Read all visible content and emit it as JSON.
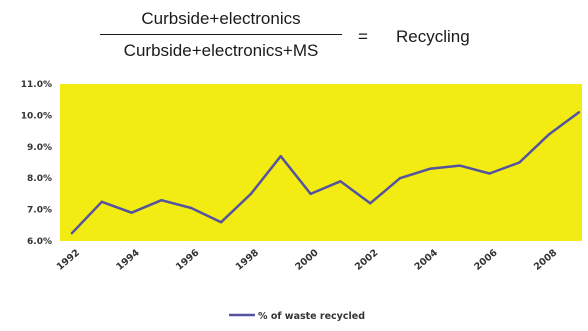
{
  "formula": {
    "numerator": "Curbside+electronics",
    "denominator": "Curbside+electronics+MS",
    "equals": "=",
    "result": "Recycling"
  },
  "chart_data": {
    "type": "line",
    "title": "",
    "xlabel": "",
    "ylabel": "",
    "background_color": "#f2ec12",
    "line_color": "#5552a0",
    "grid": false,
    "legend_position": "bottom-center",
    "ylim": [
      6.0,
      11.0
    ],
    "xlim": [
      1992,
      2009.5
    ],
    "y_ticks": [
      {
        "value": 11.0,
        "label": "11.0%"
      },
      {
        "value": 10.0,
        "label": "10.0%"
      },
      {
        "value": 9.0,
        "label": "9.0%"
      },
      {
        "value": 8.0,
        "label": "8.0%"
      },
      {
        "value": 7.0,
        "label": "7.0%"
      },
      {
        "value": 6.0,
        "label": "6.0%"
      }
    ],
    "x_ticks": [
      {
        "value": 1992,
        "label": "1992"
      },
      {
        "value": 1994,
        "label": "1994"
      },
      {
        "value": 1996,
        "label": "1996"
      },
      {
        "value": 1998,
        "label": "1998"
      },
      {
        "value": 2000,
        "label": "2000"
      },
      {
        "value": 2002,
        "label": "2002"
      },
      {
        "value": 2004,
        "label": "2004"
      },
      {
        "value": 2006,
        "label": "2006"
      },
      {
        "value": 2008,
        "label": "2008"
      }
    ],
    "series": [
      {
        "name": "% of waste recycled",
        "x": [
          1992.4,
          1993.4,
          1994.4,
          1995.4,
          1996.4,
          1997.4,
          1998.4,
          1999.4,
          2000.4,
          2001.4,
          2002.4,
          2003.4,
          2004.4,
          2005.4,
          2006.4,
          2007.4,
          2008.4,
          2009.4
        ],
        "values": [
          6.25,
          7.25,
          6.9,
          7.3,
          7.05,
          6.6,
          7.5,
          8.7,
          7.5,
          7.9,
          7.2,
          8.0,
          8.3,
          8.4,
          8.15,
          8.5,
          9.4,
          10.1
        ]
      }
    ]
  }
}
